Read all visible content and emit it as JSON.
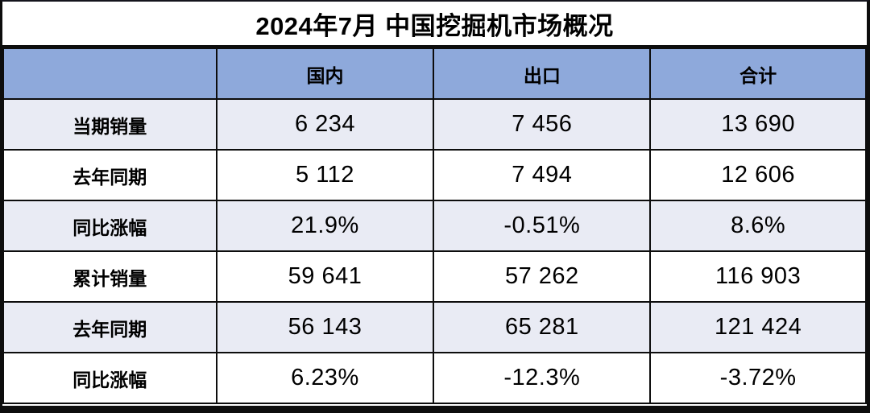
{
  "title": "2024年7月 中国挖掘机市场概况",
  "colors": {
    "header_bg": "#8EA9DB",
    "band_row_bg": "#E9EBF4",
    "plain_row_bg": "#FFFFFF",
    "border": "#0D0D0D",
    "text": "#000000"
  },
  "table": {
    "corner": "",
    "columns": [
      "国内",
      "出口",
      "合计"
    ],
    "rows": [
      {
        "label": "当期销量",
        "values": [
          "6 234",
          "7 456",
          "13 690"
        ]
      },
      {
        "label": "去年同期",
        "values": [
          "5 112",
          "7 494",
          "12 606"
        ]
      },
      {
        "label": "同比涨幅",
        "values": [
          "21.9%",
          "-0.51%",
          "8.6%"
        ]
      },
      {
        "label": "累计销量",
        "values": [
          "59 641",
          "57 262",
          "116 903"
        ]
      },
      {
        "label": "去年同期",
        "values": [
          "56 143",
          "65 281",
          "121 424"
        ]
      },
      {
        "label": "同比涨幅",
        "values": [
          "6.23%",
          "-12.3%",
          "-3.72%"
        ]
      }
    ]
  },
  "chart_data": {
    "type": "table",
    "title": "2024年7月 中国挖掘机市场概况",
    "columns": [
      "",
      "国内",
      "出口",
      "合计"
    ],
    "rows": [
      [
        "当期销量",
        "6 234",
        "7 456",
        "13 690"
      ],
      [
        "去年同期",
        "5 112",
        "7 494",
        "12 606"
      ],
      [
        "同比涨幅",
        "21.9%",
        "-0.51%",
        "8.6%"
      ],
      [
        "累计销量",
        "59 641",
        "57 262",
        "116 903"
      ],
      [
        "去年同期",
        "56 143",
        "65 281",
        "121 424"
      ],
      [
        "同比涨幅",
        "6.23%",
        "-12.3%",
        "-3.72%"
      ]
    ]
  }
}
